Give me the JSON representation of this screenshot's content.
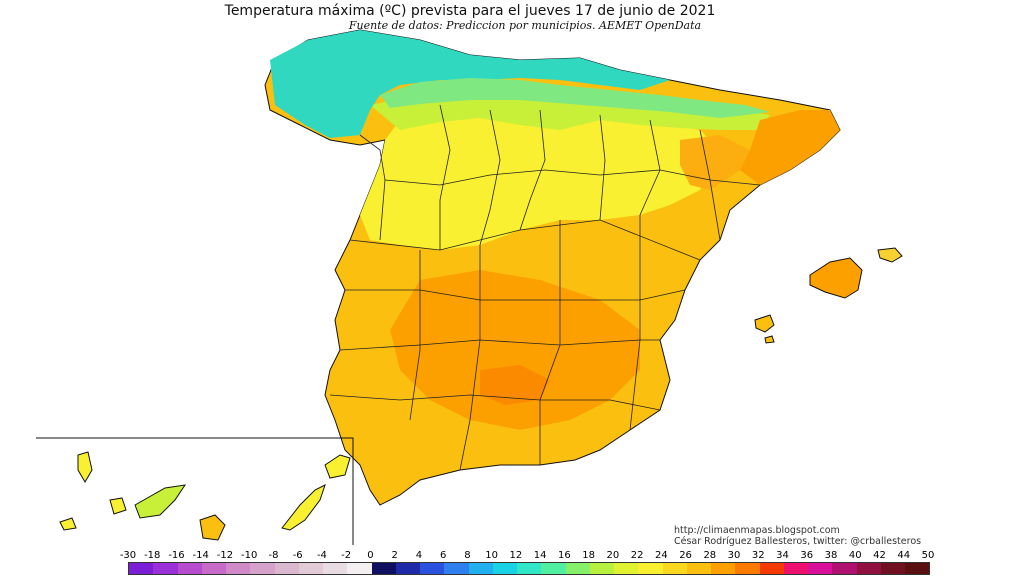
{
  "header": {
    "title": "Temperatura máxima (ºC) prevista para el jueves 17 de junio de 2021",
    "subtitle": "Fuente de datos: Prediccion por municipios. AEMET OpenData"
  },
  "credits": {
    "url": "http://climaenmapas.blogspot.com",
    "author": "César Rodríguez Ballesteros, twitter: @crballesteros"
  },
  "legend": {
    "labels": [
      "-30",
      "-18",
      "-16",
      "-14",
      "-12",
      "-10",
      "-8",
      "-6",
      "-4",
      "-2",
      "0",
      "2",
      "4",
      "6",
      "8",
      "10",
      "12",
      "14",
      "16",
      "18",
      "20",
      "22",
      "24",
      "26",
      "28",
      "30",
      "32",
      "34",
      "36",
      "38",
      "40",
      "42",
      "44",
      "50"
    ],
    "colors": [
      "#7a1fd6",
      "#9b30d8",
      "#b84ccf",
      "#c86ac8",
      "#d08ac8",
      "#d6a2cc",
      "#dcb8d0",
      "#e2cbd6",
      "#e9dce2",
      "#f4f0f2",
      "#101060",
      "#1e2aa8",
      "#2a52dc",
      "#2f80ee",
      "#20b0f0",
      "#1ad2e6",
      "#30e8c8",
      "#50f0a0",
      "#86f06a",
      "#b8f040",
      "#e0f230",
      "#f8f030",
      "#fbd820",
      "#fbbf10",
      "#fca000",
      "#fb7a00",
      "#f53a00",
      "#ee1070",
      "#d8109a",
      "#b01070",
      "#901040",
      "#701020",
      "#5a1010"
    ]
  },
  "map": {
    "regions": [
      "Península",
      "Baleares",
      "Canarias"
    ],
    "temperature_zones": [
      "14-18 costa cantábrica",
      "20-24 meseta norte",
      "26-30 mitad sur",
      "30-32 Guadalquivir"
    ]
  }
}
